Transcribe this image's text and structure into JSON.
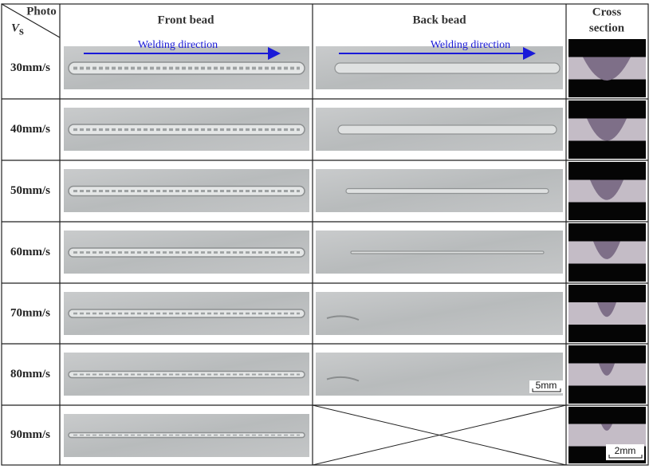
{
  "header": {
    "photo": "Photo",
    "vs_symbol": "V",
    "vs_subscript": "s",
    "front": "Front bead",
    "back": "Back bead",
    "cross_line1": "Cross",
    "cross_line2": "section"
  },
  "rows": [
    "30mm/s",
    "40mm/s",
    "50mm/s",
    "60mm/s",
    "70mm/s",
    "80mm/s",
    "90mm/s"
  ],
  "annotations": {
    "welding_direction_front": "Welding direction",
    "welding_direction_back": "Welding direction",
    "scale_back": "5mm",
    "scale_cross": "2mm"
  }
}
